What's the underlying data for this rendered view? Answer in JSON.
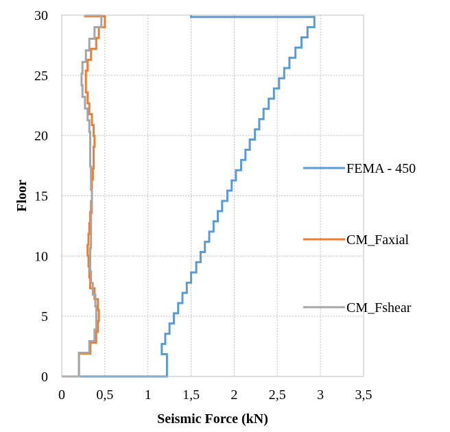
{
  "chart_data": {
    "type": "line",
    "xlabel": "Seismic Force (kN)",
    "ylabel": "Floor",
    "xlim": [
      0,
      3.5
    ],
    "ylim": [
      0,
      30
    ],
    "x_ticks": [
      "0",
      "0,5",
      "1",
      "1,5",
      "2",
      "2,5",
      "3",
      "3,5"
    ],
    "y_ticks": [
      "0",
      "5",
      "10",
      "15",
      "20",
      "25",
      "30"
    ],
    "grid": "dashed",
    "legend_placement": "right",
    "series": [
      {
        "name": "FEMA - 450",
        "color": "#5b9bd5",
        "values": [
          0,
          1.22,
          1.16,
          1.2,
          1.25,
          1.3,
          1.35,
          1.4,
          1.45,
          1.5,
          1.56,
          1.61,
          1.66,
          1.71,
          1.76,
          1.81,
          1.86,
          1.92,
          1.97,
          2.02,
          2.08,
          2.13,
          2.18,
          2.24,
          2.29,
          2.34,
          2.4,
          2.46,
          2.52,
          2.58,
          2.64,
          2.71,
          2.78,
          2.85,
          2.93,
          1.5
        ]
      },
      {
        "name": "CM_Faxial",
        "color": "#ed7d31",
        "values": [
          0,
          0.2,
          0.33,
          0.4,
          0.42,
          0.43,
          0.42,
          0.38,
          0.33,
          0.32,
          0.31,
          0.3,
          0.31,
          0.32,
          0.33,
          0.34,
          0.35,
          0.35,
          0.36,
          0.37,
          0.37,
          0.38,
          0.37,
          0.35,
          0.32,
          0.3,
          0.28,
          0.28,
          0.3,
          0.34,
          0.4,
          0.43,
          0.5,
          0.27
        ]
      },
      {
        "name": "CM_Fshear",
        "color": "#a5a5a5",
        "values": [
          0,
          0.2,
          0.32,
          0.38,
          0.4,
          0.4,
          0.39,
          0.36,
          0.34,
          0.33,
          0.33,
          0.34,
          0.34,
          0.34,
          0.35,
          0.35,
          0.34,
          0.34,
          0.33,
          0.33,
          0.33,
          0.32,
          0.3,
          0.27,
          0.24,
          0.23,
          0.24,
          0.28,
          0.32,
          0.38,
          0.46,
          0.27
        ]
      }
    ]
  }
}
